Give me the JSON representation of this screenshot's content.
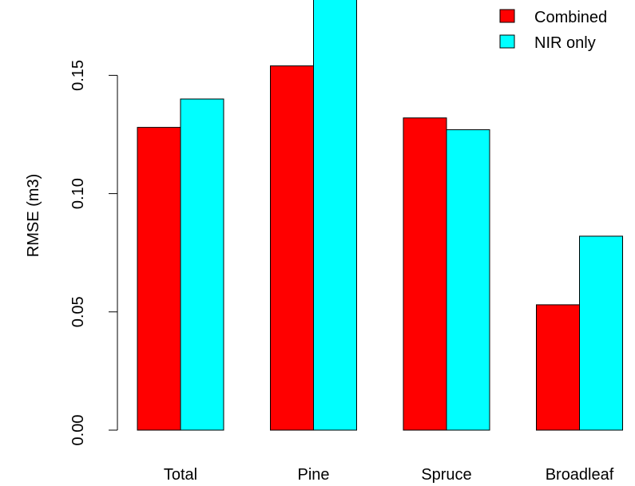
{
  "chart_data": {
    "type": "bar",
    "categories": [
      "Total",
      "Pine",
      "Spruce",
      "Broadleaf"
    ],
    "series": [
      {
        "name": "Combined",
        "color": "#ff0000",
        "values": [
          0.128,
          0.154,
          0.132,
          0.053
        ]
      },
      {
        "name": "NIR only",
        "color": "#00ffff",
        "values": [
          0.14,
          0.188,
          0.127,
          0.082
        ]
      }
    ],
    "title": "",
    "xlabel": "",
    "ylabel": "RMSE (m3)",
    "ylim": [
      0,
      0.18
    ],
    "yticks": [
      0,
      0.05,
      0.1,
      0.15
    ],
    "ytick_labels": [
      "0.00",
      "0.05",
      "0.10",
      "0.15"
    ],
    "grid": false,
    "legend_position": "top-right"
  }
}
